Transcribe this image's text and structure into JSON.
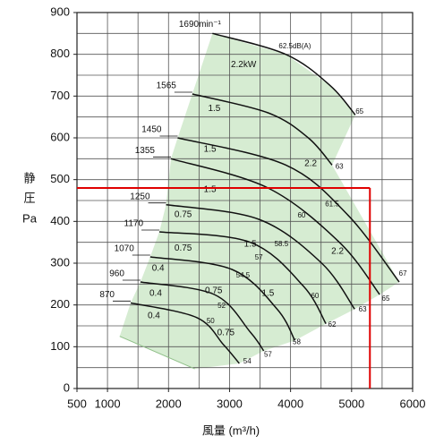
{
  "chart_data": {
    "type": "line",
    "xlabel": "風量 (m³/h)",
    "ylabel": [
      "静",
      "圧",
      "Pa"
    ],
    "xlim": [
      500,
      6000
    ],
    "ylim": [
      0,
      900
    ],
    "xticks": [
      500,
      1000,
      2000,
      3000,
      4000,
      5000,
      6000
    ],
    "yticks": [
      0,
      100,
      200,
      300,
      400,
      500,
      600,
      700,
      800,
      900
    ],
    "xgrid": [
      500,
      1000,
      1500,
      2000,
      2500,
      3000,
      3500,
      4000,
      4500,
      5000,
      5500,
      6000
    ],
    "ygrid": [
      0,
      50,
      100,
      150,
      200,
      250,
      300,
      350,
      400,
      450,
      500,
      550,
      600,
      650,
      700,
      750,
      800,
      850,
      900
    ],
    "grid": true,
    "region_color": "#d6ecd2",
    "series": [
      {
        "name": "1690min⁻¹",
        "color": "#111111",
        "x": [
          2720,
          3920,
          4650,
          5060
        ],
        "y": [
          850,
          800,
          725,
          655
        ]
      },
      {
        "name": "1565",
        "color": "#111111",
        "x": [
          2390,
          3630,
          4290,
          4680
        ],
        "y": [
          705,
          660,
          600,
          535
        ]
      },
      {
        "name": "1450",
        "color": "#111111",
        "x": [
          2150,
          3920,
          4940,
          5780
        ],
        "y": [
          600,
          535,
          415,
          255
        ]
      },
      {
        "name": "1355",
        "color": "#111111",
        "x": [
          2040,
          3630,
          4800,
          5460
        ],
        "y": [
          550,
          480,
          350,
          225
        ]
      },
      {
        "name": "1250",
        "color": "#111111",
        "x": [
          1960,
          3480,
          4510,
          5050
        ],
        "y": [
          440,
          405,
          300,
          190
        ]
      },
      {
        "name": "1170",
        "color": "#111111",
        "x": [
          1850,
          3340,
          4210,
          4580
        ],
        "y": [
          375,
          350,
          245,
          155
        ]
      },
      {
        "name": "1070",
        "color": "#111111",
        "x": [
          1700,
          3040,
          3780,
          4070
        ],
        "y": [
          315,
          285,
          190,
          115
        ]
      },
      {
        "name": "960",
        "color": "#111111",
        "x": [
          1540,
          2750,
          3340,
          3560
        ],
        "y": [
          255,
          225,
          135,
          90
        ]
      },
      {
        "name": "870",
        "color": "#111111",
        "x": [
          1380,
          2460,
          2900,
          3160
        ],
        "y": [
          205,
          170,
          105,
          60
        ]
      }
    ],
    "min_flow_line": {
      "x": [
        1200,
        2430
      ],
      "y": [
        125,
        47
      ]
    },
    "selection": {
      "x": 5300,
      "y": 480,
      "color": "#e00000"
    },
    "power_labels": [
      {
        "text": "2.2kW",
        "x": 3230,
        "y": 775
      },
      {
        "text": "1.5",
        "x": 2750,
        "y": 670
      },
      {
        "text": "1.5",
        "x": 2680,
        "y": 572
      },
      {
        "text": "1.5",
        "x": 2680,
        "y": 476
      },
      {
        "text": "0.75",
        "x": 2240,
        "y": 416
      },
      {
        "text": "0.75",
        "x": 2240,
        "y": 336
      },
      {
        "text": "0.4",
        "x": 1830,
        "y": 287
      },
      {
        "text": "0.4",
        "x": 1790,
        "y": 227
      },
      {
        "text": "0.4",
        "x": 1760,
        "y": 174
      },
      {
        "text": "0.75",
        "x": 2740,
        "y": 234
      },
      {
        "text": "0.75",
        "x": 2940,
        "y": 133
      },
      {
        "text": "1.5",
        "x": 3340,
        "y": 345
      },
      {
        "text": "1.5",
        "x": 3630,
        "y": 227
      },
      {
        "text": "2.2",
        "x": 4330,
        "y": 538
      },
      {
        "text": "2.2",
        "x": 4770,
        "y": 328
      }
    ],
    "noise_labels": [
      {
        "text": "62.5dB(A)",
        "x": 4070,
        "y": 819
      },
      {
        "text": "65",
        "x": 5130,
        "y": 662
      },
      {
        "text": "63",
        "x": 4800,
        "y": 531
      },
      {
        "text": "61.5",
        "x": 4680,
        "y": 441
      },
      {
        "text": "60",
        "x": 4180,
        "y": 414
      },
      {
        "text": "58.5",
        "x": 3850,
        "y": 345
      },
      {
        "text": "57",
        "x": 3480,
        "y": 313
      },
      {
        "text": "54.5",
        "x": 3220,
        "y": 270
      },
      {
        "text": "52",
        "x": 2870,
        "y": 197
      },
      {
        "text": "50",
        "x": 2690,
        "y": 161
      },
      {
        "text": "67",
        "x": 5840,
        "y": 274
      },
      {
        "text": "65",
        "x": 5560,
        "y": 214
      },
      {
        "text": "60",
        "x": 4400,
        "y": 221
      },
      {
        "text": "63",
        "x": 5180,
        "y": 189
      },
      {
        "text": "62",
        "x": 4680,
        "y": 152
      },
      {
        "text": "58",
        "x": 4100,
        "y": 111
      },
      {
        "text": "57",
        "x": 3630,
        "y": 81
      },
      {
        "text": "54",
        "x": 3290,
        "y": 64
      }
    ]
  }
}
